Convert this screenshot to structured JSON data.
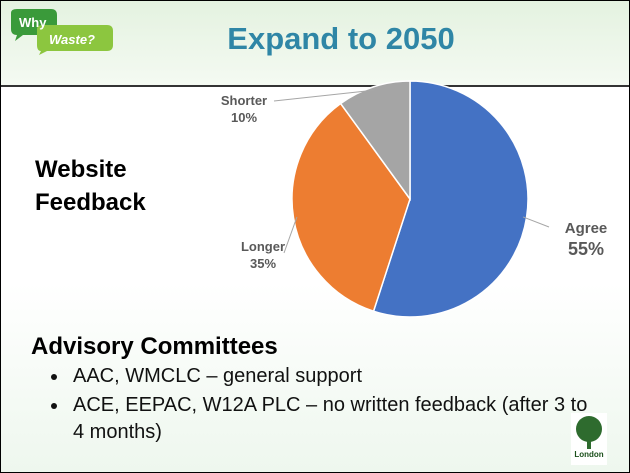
{
  "chart_data": {
    "type": "pie",
    "title": "Expand to 2050",
    "categories": [
      "Agree",
      "Longer",
      "Shorter"
    ],
    "values": [
      55,
      35,
      10
    ],
    "value_labels": [
      "55%",
      "35%",
      "10%"
    ],
    "colors": [
      "#4472c4",
      "#ed7d31",
      "#a5a5a5"
    ]
  },
  "logo": {
    "line1": "Why",
    "line2": "Waste?"
  },
  "heading": "Website Feedback",
  "section": {
    "title": "Advisory Committees",
    "bullets": [
      "AAC, WMCLC – general support",
      "ACE, EEPAC, W12A PLC – no written feedback (after 3 to 4 months)"
    ]
  },
  "footer_logo": "London"
}
